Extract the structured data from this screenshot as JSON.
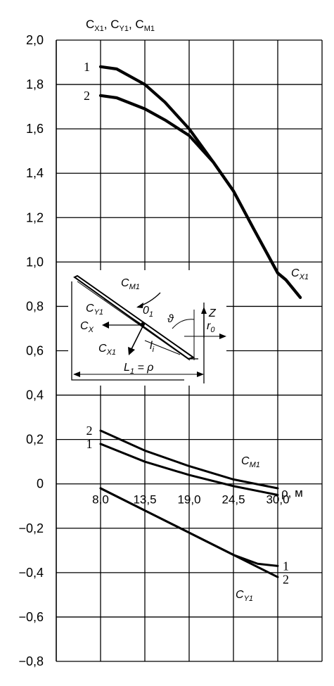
{
  "chart_data": {
    "type": "line",
    "ylabel": "Cх₁, Cу₁, Cм₁",
    "ylabel_parts": {
      "c1": "C",
      "s1": "X1",
      "sep1": ", C",
      "s2": "Y1",
      "sep2": ", C",
      "s3": "M1"
    },
    "ylim": [
      -0.8,
      2.0
    ],
    "y_ticks": [
      2.0,
      1.8,
      1.6,
      1.4,
      1.2,
      1.0,
      0.8,
      0.6,
      0.4,
      0.2,
      0,
      -0.2,
      -0.4,
      -0.6,
      -0.8
    ],
    "y_tick_labels": [
      "2,0",
      "1,8",
      "1,6",
      "1,4",
      "1,2",
      "1,0",
      "0,8",
      "0,6",
      "0,4",
      "0,2",
      "0",
      "−0,2",
      "−0,4",
      "−0,6",
      "−0,8"
    ],
    "xlim": [
      2.5,
      35.5
    ],
    "x_ticks": [
      8.0,
      13.5,
      19.0,
      24.5,
      30.0
    ],
    "x_tick_labels": [
      "8,0",
      "13,5",
      "19,0",
      "24,5",
      "30,0"
    ],
    "xlabel": "ρ, м",
    "grid": true,
    "series": [
      {
        "name": "1",
        "group": "CX1",
        "x": [
          8.0,
          10.0,
          13.5,
          16.0,
          19.0,
          22.0,
          24.5,
          27.0,
          30.0,
          31.0,
          32.8
        ],
        "y": [
          1.88,
          1.87,
          1.8,
          1.72,
          1.6,
          1.45,
          1.32,
          1.15,
          0.95,
          0.92,
          0.84
        ]
      },
      {
        "name": "2",
        "group": "CX1",
        "x": [
          8.0,
          10.0,
          13.5,
          16.0,
          19.0,
          22.0,
          24.5,
          27.0,
          30.0,
          31.0,
          32.8
        ],
        "y": [
          1.75,
          1.74,
          1.69,
          1.64,
          1.57,
          1.45,
          1.32,
          1.15,
          0.95,
          0.92,
          0.84
        ]
      },
      {
        "name": "2",
        "group": "CM1",
        "x": [
          8.0,
          13.5,
          19.0,
          24.5,
          30.0
        ],
        "y": [
          0.24,
          0.15,
          0.08,
          0.02,
          -0.02
        ]
      },
      {
        "name": "1",
        "group": "CM1",
        "x": [
          8.0,
          13.5,
          19.0,
          24.5,
          30.0
        ],
        "y": [
          0.18,
          0.1,
          0.04,
          -0.01,
          -0.05
        ]
      },
      {
        "name": "1",
        "group": "CY1",
        "x": [
          8.0,
          13.5,
          19.0,
          24.5,
          27.5,
          30.0
        ],
        "y": [
          -0.02,
          -0.12,
          -0.22,
          -0.32,
          -0.36,
          -0.37
        ]
      },
      {
        "name": "2",
        "group": "CY1",
        "x": [
          8.0,
          13.5,
          19.0,
          24.5,
          30.0
        ],
        "y": [
          -0.02,
          -0.12,
          -0.22,
          -0.32,
          -0.42
        ]
      }
    ],
    "curve_labels": [
      {
        "text": "1",
        "x": 6.3,
        "y": 1.88
      },
      {
        "text": "2",
        "x": 6.3,
        "y": 1.75
      },
      {
        "text": "2",
        "x": 6.6,
        "y": 0.24
      },
      {
        "text": "1",
        "x": 6.6,
        "y": 0.18
      },
      {
        "text": "1",
        "x": 31.0,
        "y": -0.37
      },
      {
        "text": "2",
        "x": 31.0,
        "y": -0.43
      }
    ],
    "series_labels": {
      "cx1": {
        "c": "C",
        "sub": "X1"
      },
      "cm1": {
        "c": "C",
        "sub": "M1"
      },
      "cy1": {
        "c": "C",
        "sub": "Y1"
      }
    },
    "inset": {
      "cm1": {
        "c": "C",
        "sub": "M1"
      },
      "cy1": {
        "c": "C",
        "sub": "Y1"
      },
      "o1": {
        "c": "0",
        "sub": "1"
      },
      "theta": "ϑ",
      "z": "Z",
      "r0": {
        "c": "r",
        "sub": "0"
      },
      "cx": {
        "c": "C",
        "sub": "X"
      },
      "cx1": {
        "c": "C",
        "sub": "X1"
      },
      "li": {
        "c": "l",
        "sub": "i"
      },
      "l1": {
        "c": "L",
        "sub": "1",
        "rest": " = ρ"
      }
    }
  }
}
